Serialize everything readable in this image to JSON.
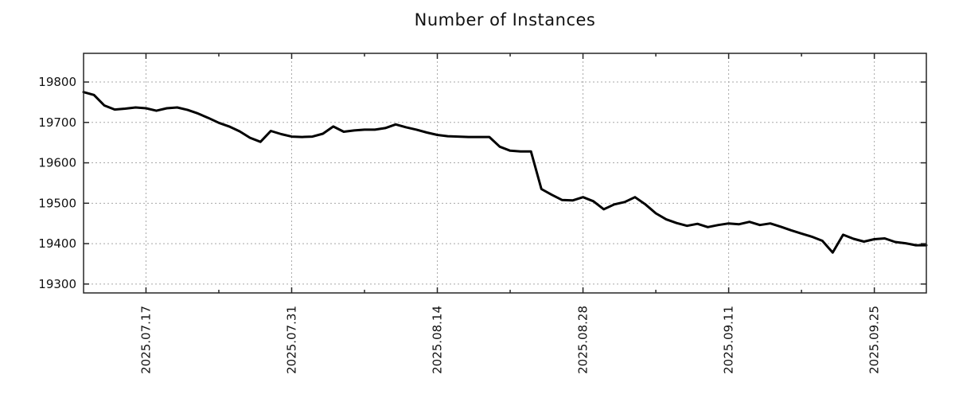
{
  "chart_data": {
    "type": "line",
    "title": "Number of Instances",
    "x": [
      "2025.07.11",
      "2025.07.12",
      "2025.07.13",
      "2025.07.14",
      "2025.07.15",
      "2025.07.16",
      "2025.07.17",
      "2025.07.18",
      "2025.07.19",
      "2025.07.20",
      "2025.07.21",
      "2025.07.22",
      "2025.07.23",
      "2025.07.24",
      "2025.07.25",
      "2025.07.26",
      "2025.07.27",
      "2025.07.28",
      "2025.07.29",
      "2025.07.30",
      "2025.07.31",
      "2025.08.01",
      "2025.08.02",
      "2025.08.03",
      "2025.08.04",
      "2025.08.05",
      "2025.08.06",
      "2025.08.07",
      "2025.08.08",
      "2025.08.09",
      "2025.08.10",
      "2025.08.11",
      "2025.08.12",
      "2025.08.13",
      "2025.08.14",
      "2025.08.15",
      "2025.08.16",
      "2025.08.17",
      "2025.08.18",
      "2025.08.19",
      "2025.08.20",
      "2025.08.21",
      "2025.08.22",
      "2025.08.23",
      "2025.08.24",
      "2025.08.25",
      "2025.08.26",
      "2025.08.27",
      "2025.08.28",
      "2025.08.29",
      "2025.08.30",
      "2025.08.31",
      "2025.09.01",
      "2025.09.02",
      "2025.09.03",
      "2025.09.04",
      "2025.09.05",
      "2025.09.06",
      "2025.09.07",
      "2025.09.08",
      "2025.09.09",
      "2025.09.10",
      "2025.09.11",
      "2025.09.12",
      "2025.09.13",
      "2025.09.14",
      "2025.09.15",
      "2025.09.16",
      "2025.09.17",
      "2025.09.18",
      "2025.09.19",
      "2025.09.20",
      "2025.09.21",
      "2025.09.22",
      "2025.09.23",
      "2025.09.24",
      "2025.09.25",
      "2025.09.26",
      "2025.09.27",
      "2025.09.28",
      "2025.09.29",
      "2025.09.30"
    ],
    "values": [
      19775,
      19768,
      19742,
      19732,
      19734,
      19737,
      19735,
      19729,
      19735,
      19737,
      19731,
      19722,
      19711,
      19699,
      19690,
      19678,
      19662,
      19652,
      19679,
      19671,
      19665,
      19664,
      19665,
      19672,
      19690,
      19677,
      19680,
      19682,
      19682,
      19686,
      19695,
      19688,
      19682,
      19675,
      19669,
      19666,
      19665,
      19664,
      19664,
      19664,
      19640,
      19630,
      19628,
      19628,
      19535,
      19521,
      19508,
      19507,
      19515,
      19505,
      19485,
      19497,
      19503,
      19515,
      19497,
      19475,
      19460,
      19451,
      19444,
      19449,
      19441,
      19446,
      19450,
      19448,
      19454,
      19446,
      19450,
      19442,
      19433,
      19425,
      19417,
      19407,
      19378,
      19422,
      19412,
      19405,
      19411,
      19413,
      19404,
      19401,
      19396,
      19396
    ],
    "xlabel": "",
    "ylabel": "",
    "ylim": [
      19278,
      19871
    ],
    "yticks": [
      19300,
      19400,
      19500,
      19600,
      19700,
      19800
    ],
    "xticks_major": [
      {
        "index": 6,
        "label": "2025.07.17"
      },
      {
        "index": 20,
        "label": "2025.07.31"
      },
      {
        "index": 34,
        "label": "2025.08.14"
      },
      {
        "index": 48,
        "label": "2025.08.28"
      },
      {
        "index": 62,
        "label": "2025.09.11"
      },
      {
        "index": 76,
        "label": "2025.09.25"
      }
    ],
    "xticks_minor_indices": [
      13,
      27,
      41,
      55,
      69
    ],
    "grid": "dashed, both axes at major ticks",
    "legend": "none",
    "line_color": "#000000",
    "grid_color": "#a8a8a8",
    "border_color": "#262626",
    "tick_label_color": "#111111"
  }
}
